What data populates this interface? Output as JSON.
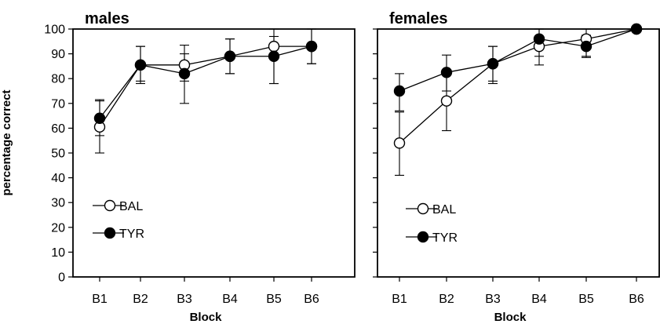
{
  "chart_data": [
    {
      "type": "line",
      "title": "males",
      "xlabel": "Block",
      "ylabel": "percentage correct",
      "ylim": [
        0,
        100
      ],
      "yticks": [
        "0",
        "10",
        "20",
        "30",
        "40",
        "50",
        "60",
        "70",
        "80",
        "90",
        "100"
      ],
      "categories": [
        "B1",
        "B2",
        "B3",
        "B4",
        "B5",
        "B6"
      ],
      "grid": false,
      "legend_position": "bottom-left",
      "series": [
        {
          "name": "BAL",
          "marker": "open-circle",
          "color": "#ffffff",
          "values": [
            60.5,
            85.5,
            85.5,
            89,
            93,
            93
          ],
          "err_low": [
            50,
            79,
            79,
            82,
            78,
            86
          ],
          "err_high": [
            71,
            93,
            93.5,
            96,
            100,
            100
          ]
        },
        {
          "name": "TYR",
          "marker": "filled-circle",
          "color": "#000000",
          "values": [
            64,
            85.5,
            82,
            89,
            89,
            93
          ],
          "err_low": [
            57,
            78,
            70,
            82,
            78,
            86
          ],
          "err_high": [
            71.5,
            93,
            90,
            96,
            97,
            100
          ]
        }
      ]
    },
    {
      "type": "line",
      "title": "females",
      "xlabel": "Block",
      "ylabel": "",
      "ylim": [
        0,
        100
      ],
      "categories": [
        "B1",
        "B2",
        "B3",
        "B4",
        "B5",
        "B6"
      ],
      "grid": false,
      "legend_position": "bottom-left",
      "series": [
        {
          "name": "BAL",
          "marker": "open-circle",
          "color": "#ffffff",
          "values": [
            54,
            71,
            86,
            93,
            96,
            100
          ],
          "err_low": [
            41,
            59,
            79,
            85.5,
            89,
            100
          ],
          "err_high": [
            66.5,
            82.5,
            93,
            100,
            100,
            100
          ]
        },
        {
          "name": "TYR",
          "marker": "filled-circle",
          "color": "#000000",
          "values": [
            75,
            82.5,
            86,
            96,
            93,
            100
          ],
          "err_low": [
            67,
            75,
            78,
            89,
            88.5,
            100
          ],
          "err_high": [
            82,
            89.5,
            93,
            100,
            97.5,
            100
          ]
        }
      ]
    }
  ]
}
